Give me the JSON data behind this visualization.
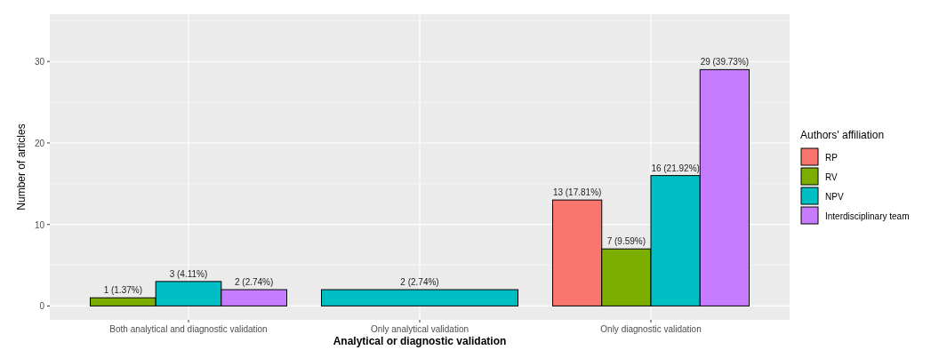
{
  "chart_data": {
    "type": "bar",
    "xlabel": "Analytical or diagnostic validation",
    "ylabel": "Number of articles",
    "legend_title": "Authors' affiliation",
    "legend": "right",
    "grid": true,
    "categories": [
      "Both analytical and diagnostic validation",
      "Only analytical validation",
      "Only diagnostic validation"
    ],
    "ylim": [
      -1.7,
      35.8
    ],
    "yticks": [
      0,
      10,
      20,
      30
    ],
    "series": [
      {
        "name": "RP",
        "color": "#f8766d",
        "values": [
          null,
          null,
          13
        ],
        "value_labels": [
          null,
          null,
          "13 (17.81%)"
        ]
      },
      {
        "name": "RV",
        "color": "#7cae00",
        "values": [
          1,
          null,
          7
        ],
        "value_labels": [
          "1 (1.37%)",
          null,
          "7 (9.59%)"
        ]
      },
      {
        "name": "NPV",
        "color": "#00bfc4",
        "values": [
          3,
          2,
          16
        ],
        "value_labels": [
          "3 (4.11%)",
          "2 (2.74%)",
          "16 (21.92%)"
        ]
      },
      {
        "name": "Interdisciplinary team",
        "color": "#c77cff",
        "values": [
          2,
          null,
          29
        ],
        "value_labels": [
          "2 (2.74%)",
          null,
          "29 (39.73%)"
        ]
      }
    ]
  }
}
